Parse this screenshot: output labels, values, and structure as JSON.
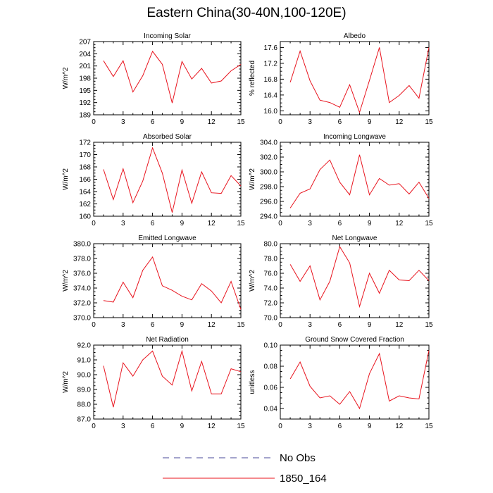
{
  "title": "Eastern China(30-40N,100-120E)",
  "colors": {
    "line_1850": "#e8141e",
    "no_obs": "#4a4a9a"
  },
  "legend": [
    {
      "label": "No Obs",
      "style": "dashed",
      "color": "#4a4a9a"
    },
    {
      "label": "1850_164",
      "style": "solid",
      "color": "#e8141e"
    }
  ],
  "chart_data": [
    {
      "type": "line",
      "title": "Incoming Solar",
      "ylabel": "W/m^2",
      "xlim": [
        0,
        15
      ],
      "ylim": [
        189,
        207
      ],
      "xticks": [
        0,
        3,
        6,
        9,
        12,
        15
      ],
      "xtick_labels": [
        "0",
        "3",
        "6",
        "9",
        "12",
        "15"
      ],
      "yticks": [
        189,
        192,
        195,
        198,
        201,
        204,
        207
      ],
      "ytick_labels": [
        "189",
        "192",
        "195",
        "198",
        "201",
        "204",
        "207"
      ],
      "series": [
        {
          "name": "1850_164",
          "x": [
            1,
            2,
            3,
            4,
            5,
            6,
            7,
            8,
            9,
            10,
            11,
            12,
            13,
            14,
            15
          ],
          "y": [
            202.3,
            198.4,
            202.3,
            194.6,
            198.6,
            204.6,
            201.4,
            191.9,
            202.1,
            197.8,
            200.4,
            196.8,
            197.3,
            199.8,
            201.4
          ]
        }
      ]
    },
    {
      "type": "line",
      "title": "Albedo",
      "ylabel": "% reflected",
      "xlim": [
        0,
        15
      ],
      "ylim": [
        15.9,
        17.75
      ],
      "xticks": [
        0,
        3,
        6,
        9,
        12,
        15
      ],
      "xtick_labels": [
        "0",
        "3",
        "6",
        "9",
        "12",
        "15"
      ],
      "yticks": [
        16.0,
        16.4,
        16.8,
        17.2,
        17.6
      ],
      "ytick_labels": [
        "16.0",
        "16.4",
        "16.8",
        "17.2",
        "17.6"
      ],
      "series": [
        {
          "name": "1850_164",
          "x": [
            1,
            2,
            3,
            4,
            5,
            6,
            7,
            8,
            9,
            10,
            11,
            12,
            13,
            14,
            15
          ],
          "y": [
            16.72,
            17.51,
            16.76,
            16.27,
            16.21,
            16.09,
            16.66,
            15.96,
            16.77,
            17.6,
            16.21,
            16.39,
            16.64,
            16.32,
            17.6
          ]
        }
      ]
    },
    {
      "type": "line",
      "title": "Absorbed Solar",
      "ylabel": "W/m^2",
      "xlim": [
        0,
        15
      ],
      "ylim": [
        160,
        172
      ],
      "xticks": [
        0,
        3,
        6,
        9,
        12,
        15
      ],
      "xtick_labels": [
        "0",
        "3",
        "6",
        "9",
        "12",
        "15"
      ],
      "yticks": [
        160,
        162,
        164,
        166,
        168,
        170,
        172
      ],
      "ytick_labels": [
        "160",
        "162",
        "164",
        "166",
        "168",
        "170",
        "172"
      ],
      "series": [
        {
          "name": "1850_164",
          "x": [
            1,
            2,
            3,
            4,
            5,
            6,
            7,
            8,
            9,
            10,
            11,
            12,
            13,
            14,
            15
          ],
          "y": [
            167.6,
            162.7,
            167.7,
            162.2,
            165.7,
            171.1,
            167.0,
            160.6,
            167.5,
            162.1,
            167.2,
            163.8,
            163.7,
            166.6,
            164.9
          ]
        }
      ]
    },
    {
      "type": "line",
      "title": "Incoming Longwave",
      "ylabel": "W/m^2",
      "xlim": [
        0,
        15
      ],
      "ylim": [
        294,
        304
      ],
      "xticks": [
        0,
        3,
        6,
        9,
        12,
        15
      ],
      "xtick_labels": [
        "0",
        "3",
        "6",
        "9",
        "12",
        "15"
      ],
      "yticks": [
        294,
        296,
        298,
        300,
        302,
        304
      ],
      "ytick_labels": [
        "294.0",
        "296.0",
        "298.0",
        "300.0",
        "302.0",
        "304.0"
      ],
      "series": [
        {
          "name": "1850_164",
          "x": [
            1,
            2,
            3,
            4,
            5,
            6,
            7,
            8,
            9,
            10,
            11,
            12,
            13,
            14,
            15
          ],
          "y": [
            295.1,
            297.1,
            297.7,
            300.3,
            301.6,
            298.6,
            296.9,
            302.3,
            296.9,
            299.1,
            298.2,
            298.4,
            297.0,
            298.6,
            296.4
          ]
        }
      ]
    },
    {
      "type": "line",
      "title": "Emitted Longwave",
      "ylabel": "W/m^2",
      "xlim": [
        0,
        15
      ],
      "ylim": [
        370,
        380
      ],
      "xticks": [
        0,
        3,
        6,
        9,
        12,
        15
      ],
      "xtick_labels": [
        "0",
        "3",
        "6",
        "9",
        "12",
        "15"
      ],
      "yticks": [
        370,
        372,
        374,
        376,
        378,
        380
      ],
      "ytick_labels": [
        "370.0",
        "372.0",
        "374.0",
        "376.0",
        "378.0",
        "380.0"
      ],
      "series": [
        {
          "name": "1850_164",
          "x": [
            1,
            2,
            3,
            4,
            5,
            6,
            7,
            8,
            9,
            10,
            11,
            12,
            13,
            14,
            15
          ],
          "y": [
            372.3,
            372.1,
            374.8,
            372.7,
            376.4,
            378.2,
            374.3,
            373.7,
            372.9,
            372.4,
            374.6,
            373.6,
            372.0,
            374.9,
            371.1
          ]
        }
      ]
    },
    {
      "type": "line",
      "title": "Net Longwave",
      "ylabel": "W/m^2",
      "xlim": [
        0,
        15
      ],
      "ylim": [
        70,
        80
      ],
      "xticks": [
        0,
        3,
        6,
        9,
        12,
        15
      ],
      "xtick_labels": [
        "0",
        "3",
        "6",
        "9",
        "12",
        "15"
      ],
      "yticks": [
        70,
        72,
        74,
        76,
        78,
        80
      ],
      "ytick_labels": [
        "70.0",
        "72.0",
        "74.0",
        "76.0",
        "78.0",
        "80.0"
      ],
      "series": [
        {
          "name": "1850_164",
          "x": [
            1,
            2,
            3,
            4,
            5,
            6,
            7,
            8,
            9,
            10,
            11,
            12,
            13,
            14,
            15
          ],
          "y": [
            77.2,
            74.9,
            77.0,
            72.4,
            74.9,
            79.6,
            77.4,
            71.5,
            76.0,
            73.3,
            76.4,
            75.1,
            75.0,
            76.4,
            75.0
          ]
        }
      ]
    },
    {
      "type": "line",
      "title": "Net Radiation",
      "ylabel": "W/m^2",
      "xlim": [
        0,
        15
      ],
      "ylim": [
        87,
        92
      ],
      "xticks": [
        0,
        3,
        6,
        9,
        12,
        15
      ],
      "xtick_labels": [
        "0",
        "3",
        "6",
        "9",
        "12",
        "15"
      ],
      "yticks": [
        87,
        88,
        89,
        90,
        91,
        92
      ],
      "ytick_labels": [
        "87.0",
        "88.0",
        "89.0",
        "90.0",
        "91.0",
        "92.0"
      ],
      "series": [
        {
          "name": "1850_164",
          "x": [
            1,
            2,
            3,
            4,
            5,
            6,
            7,
            8,
            9,
            10,
            11,
            12,
            13,
            14,
            15
          ],
          "y": [
            90.6,
            87.8,
            90.8,
            89.9,
            91.0,
            91.6,
            89.9,
            89.3,
            91.6,
            88.9,
            90.9,
            88.7,
            88.7,
            90.4,
            90.2
          ]
        }
      ]
    },
    {
      "type": "line",
      "title": "Ground Snow Covered Fraction",
      "ylabel": "unitless",
      "xlim": [
        0,
        15
      ],
      "ylim": [
        0.03,
        0.1
      ],
      "xticks": [
        0,
        3,
        6,
        9,
        12,
        15
      ],
      "xtick_labels": [
        "0",
        "3",
        "6",
        "9",
        "12",
        "15"
      ],
      "yticks": [
        0.04,
        0.06,
        0.08,
        0.1
      ],
      "ytick_labels": [
        "0.04",
        "0.06",
        "0.08",
        "0.10"
      ],
      "series": [
        {
          "name": "1850_164",
          "x": [
            1,
            2,
            3,
            4,
            5,
            6,
            7,
            8,
            9,
            10,
            11,
            12,
            13,
            14,
            15
          ],
          "y": [
            0.068,
            0.084,
            0.061,
            0.05,
            0.052,
            0.044,
            0.056,
            0.04,
            0.073,
            0.092,
            0.047,
            0.052,
            0.05,
            0.049,
            0.095
          ]
        }
      ]
    }
  ]
}
